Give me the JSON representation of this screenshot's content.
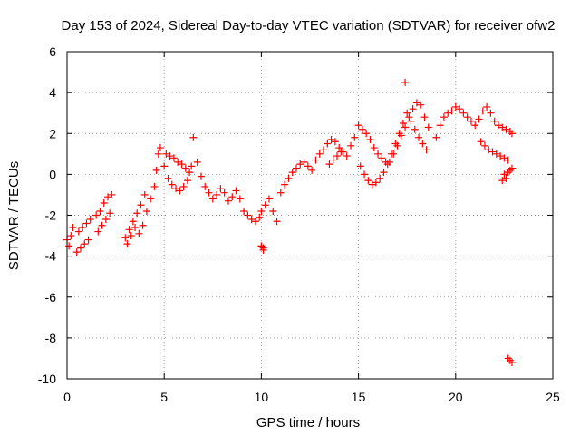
{
  "chart_data": {
    "type": "scatter",
    "title": "Day 153 of 2024, Sidereal Day-to-day VTEC variation (SDTVAR) for receiver ofw2",
    "xlabel": "GPS time / hours",
    "ylabel": "SDTVAR / TECUs",
    "xlim": [
      0,
      25
    ],
    "ylim": [
      -10,
      6
    ],
    "xticks": [
      0,
      5,
      10,
      15,
      20,
      25
    ],
    "xtick_labels": [
      "0",
      "5",
      "10",
      "15",
      "20",
      "25"
    ],
    "yticks": [
      -10,
      -8,
      -6,
      -4,
      -2,
      0,
      2,
      4,
      6
    ],
    "ytick_labels": [
      "-10",
      "-8",
      "-6",
      "-4",
      "-2",
      "0",
      "2",
      "4",
      "6"
    ],
    "grid": true,
    "marker": "+",
    "color": "#ff0000",
    "series": [
      {
        "name": "ofw2",
        "x": [
          0.0,
          0.1,
          0.2,
          0.3,
          0.5,
          0.7,
          0.9,
          1.1,
          0.6,
          0.8,
          1.0,
          1.2,
          1.5,
          1.7,
          1.9,
          2.1,
          1.6,
          1.8,
          2.0,
          2.2,
          2.3,
          3.0,
          3.2,
          3.4,
          3.6,
          3.8,
          4.0,
          3.1,
          3.3,
          3.5,
          3.7,
          3.9,
          4.1,
          4.3,
          4.5,
          4.6,
          4.7,
          4.8,
          5.0,
          5.2,
          5.4,
          5.6,
          5.8,
          6.0,
          6.2,
          6.3,
          6.4,
          5.1,
          5.3,
          5.5,
          5.7,
          5.9,
          6.1,
          6.5,
          6.7,
          6.9,
          7.1,
          7.3,
          7.5,
          7.7,
          7.9,
          8.1,
          8.3,
          8.5,
          8.7,
          8.9,
          9.1,
          9.3,
          9.5,
          9.7,
          9.9,
          10.0,
          10.1,
          10.2,
          10.4,
          10.6,
          10.8,
          11.0,
          11.2,
          11.4,
          11.6,
          11.8,
          12.0,
          12.2,
          12.4,
          12.6,
          12.8,
          13.0,
          13.2,
          13.4,
          13.6,
          13.8,
          14.0,
          14.2,
          14.4,
          13.5,
          13.7,
          13.9,
          14.1,
          14.6,
          14.8,
          15.0,
          15.2,
          15.4,
          15.6,
          15.8,
          16.0,
          16.2,
          16.4,
          15.1,
          15.3,
          15.5,
          15.7,
          15.9,
          16.1,
          16.3,
          16.5,
          16.7,
          16.9,
          17.1,
          17.3,
          16.6,
          16.8,
          17.0,
          17.2,
          17.4,
          17.6,
          17.8,
          18.0,
          18.2,
          18.4,
          18.6,
          17.5,
          17.7,
          17.9,
          18.1,
          18.3,
          18.5,
          17.4,
          19.0,
          19.2,
          19.4,
          19.6,
          19.8,
          20.0,
          20.2,
          20.4,
          20.6,
          20.8,
          21.0,
          21.2,
          21.4,
          21.6,
          21.8,
          22.0,
          22.2,
          22.4,
          22.6,
          22.8,
          22.9,
          21.3,
          21.5,
          21.7,
          21.9,
          22.1,
          22.3,
          22.5,
          22.7,
          22.4,
          22.5,
          22.6,
          22.7,
          22.8,
          22.9,
          10.0,
          10.1,
          22.7,
          22.8,
          22.9
        ],
        "y": [
          -3.2,
          -3.5,
          -3.0,
          -2.6,
          -3.8,
          -3.6,
          -3.4,
          -3.2,
          -2.8,
          -2.6,
          -2.4,
          -2.2,
          -2.0,
          -1.8,
          -1.4,
          -1.1,
          -2.8,
          -2.5,
          -2.2,
          -1.9,
          -1.0,
          -3.1,
          -2.7,
          -2.3,
          -1.9,
          -1.5,
          -1.0,
          -3.4,
          -3.0,
          -2.6,
          -2.9,
          -2.5,
          -1.8,
          -1.2,
          -0.6,
          0.2,
          1.0,
          1.3,
          0.4,
          -0.2,
          -0.5,
          -0.7,
          -0.8,
          -0.6,
          -0.3,
          0.1,
          0.4,
          1.0,
          0.9,
          0.8,
          0.6,
          0.5,
          0.3,
          1.8,
          0.6,
          -0.1,
          -0.6,
          -0.9,
          -1.2,
          -1.0,
          -0.7,
          -0.9,
          -1.3,
          -1.1,
          -0.8,
          -1.2,
          -1.8,
          -2.0,
          -2.2,
          -2.3,
          -2.1,
          -1.8,
          -3.6,
          -1.5,
          -1.2,
          -1.8,
          -2.3,
          -0.9,
          -0.5,
          -0.2,
          0.1,
          0.3,
          0.5,
          0.6,
          0.4,
          0.2,
          0.7,
          1.0,
          1.2,
          1.5,
          1.7,
          1.6,
          1.3,
          1.1,
          0.9,
          0.5,
          0.7,
          0.9,
          1.1,
          1.4,
          1.8,
          2.4,
          2.2,
          2.0,
          1.7,
          1.3,
          1.0,
          0.8,
          0.6,
          0.4,
          0.0,
          -0.3,
          -0.5,
          -0.4,
          -0.2,
          0.1,
          0.5,
          1.0,
          1.5,
          2.0,
          2.5,
          0.6,
          1.0,
          1.4,
          1.9,
          2.3,
          2.8,
          3.2,
          3.5,
          3.4,
          2.8,
          2.3,
          3.0,
          2.6,
          2.2,
          1.8,
          1.5,
          1.2,
          4.5,
          1.8,
          2.4,
          2.8,
          3.0,
          3.1,
          3.3,
          3.2,
          3.0,
          2.8,
          2.6,
          2.4,
          2.7,
          3.1,
          3.3,
          3.0,
          2.6,
          2.4,
          2.3,
          2.2,
          2.1,
          2.0,
          1.6,
          1.4,
          1.2,
          1.1,
          1.0,
          0.9,
          0.8,
          0.7,
          -0.3,
          0.0,
          -0.2,
          0.1,
          0.2,
          0.3,
          -3.5,
          -3.7,
          -9.0,
          -9.1,
          -9.2
        ]
      }
    ]
  }
}
